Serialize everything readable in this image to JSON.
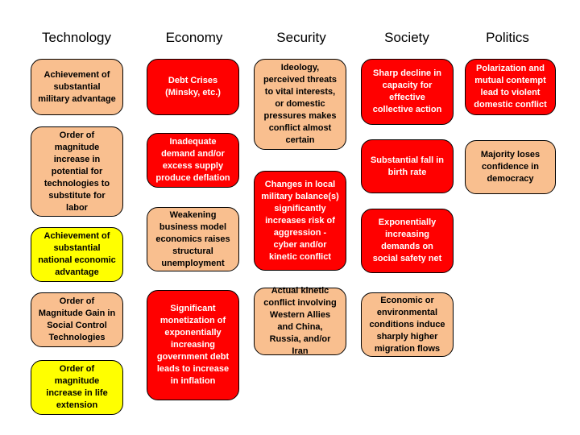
{
  "level_colors": {
    "peach": "#f9bf8f",
    "red": "#ff0000",
    "yellow": "#ffff00"
  },
  "columns": [
    {
      "header": "Technology",
      "cards": [
        {
          "text": "Achievement of substantial military advantage",
          "level": "peach"
        },
        {
          "text": "Order of magnitude increase in potential for technologies to substitute for labor",
          "level": "peach"
        },
        {
          "text": "Achievement of substantial national economic advantage",
          "level": "yellow"
        },
        {
          "text": "Order of Magnitude Gain in Social Control Technologies",
          "level": "peach"
        },
        {
          "text": "Order of magnitude increase in life extension",
          "level": "yellow"
        }
      ]
    },
    {
      "header": "Economy",
      "cards": [
        {
          "text": "Debt Crises (Minsky, etc.)",
          "level": "red"
        },
        {
          "text": "Inadequate demand and/or excess supply produce deflation",
          "level": "red"
        },
        {
          "text": "Weakening business model economics raises structural unemployment",
          "level": "peach"
        },
        {
          "text": "Significant monetization of exponentially increasing government debt leads to increase in inflation",
          "level": "red"
        }
      ]
    },
    {
      "header": "Security",
      "cards": [
        {
          "text": "Ideology, perceived threats to vital interests, or domestic pressures makes conflict almost certain",
          "level": "peach"
        },
        {
          "text": "Changes in local military balance(s) significantly increases risk of aggression - cyber and/or kinetic conflict",
          "level": "red"
        },
        {
          "text": "Actual kinetic conflict involving Western Allies and China, Russia, and/or Iran",
          "level": "peach"
        }
      ]
    },
    {
      "header": "Society",
      "cards": [
        {
          "text": "Sharp decline in capacity for effective collective action",
          "level": "red"
        },
        {
          "text": "Substantial fall in birth rate",
          "level": "red"
        },
        {
          "text": "Exponentially increasing demands on social safety net",
          "level": "red"
        },
        {
          "text": "Economic or environmental conditions induce sharply higher migration flows",
          "level": "peach"
        }
      ]
    },
    {
      "header": "Politics",
      "cards": [
        {
          "text": "Polarization and mutual contempt lead to violent domestic conflict",
          "level": "red"
        },
        {
          "text": "Majority loses confidence in democracy",
          "level": "peach"
        }
      ]
    }
  ]
}
